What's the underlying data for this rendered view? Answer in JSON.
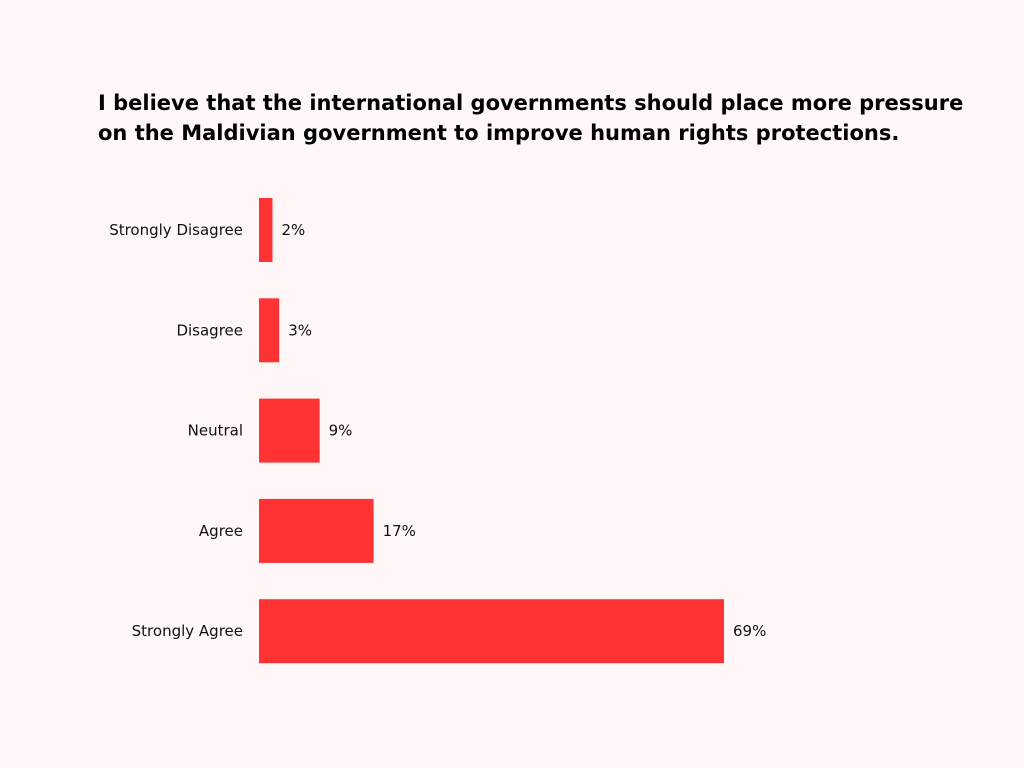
{
  "chart_data": {
    "type": "bar",
    "orientation": "horizontal",
    "title": "I believe that the international governments should place more pressure on the Maldivian government to improve human rights protections.",
    "categories": [
      "Strongly Disagree",
      "Disagree",
      "Neutral",
      "Agree",
      "Strongly Agree"
    ],
    "values": [
      2,
      3,
      9,
      17,
      69
    ],
    "value_labels": [
      "2%",
      "3%",
      "9%",
      "17%",
      "69%"
    ],
    "xlabel": "",
    "ylabel": "",
    "xlim": [
      0,
      69
    ],
    "grid": false,
    "bar_color": "#FF3333"
  }
}
